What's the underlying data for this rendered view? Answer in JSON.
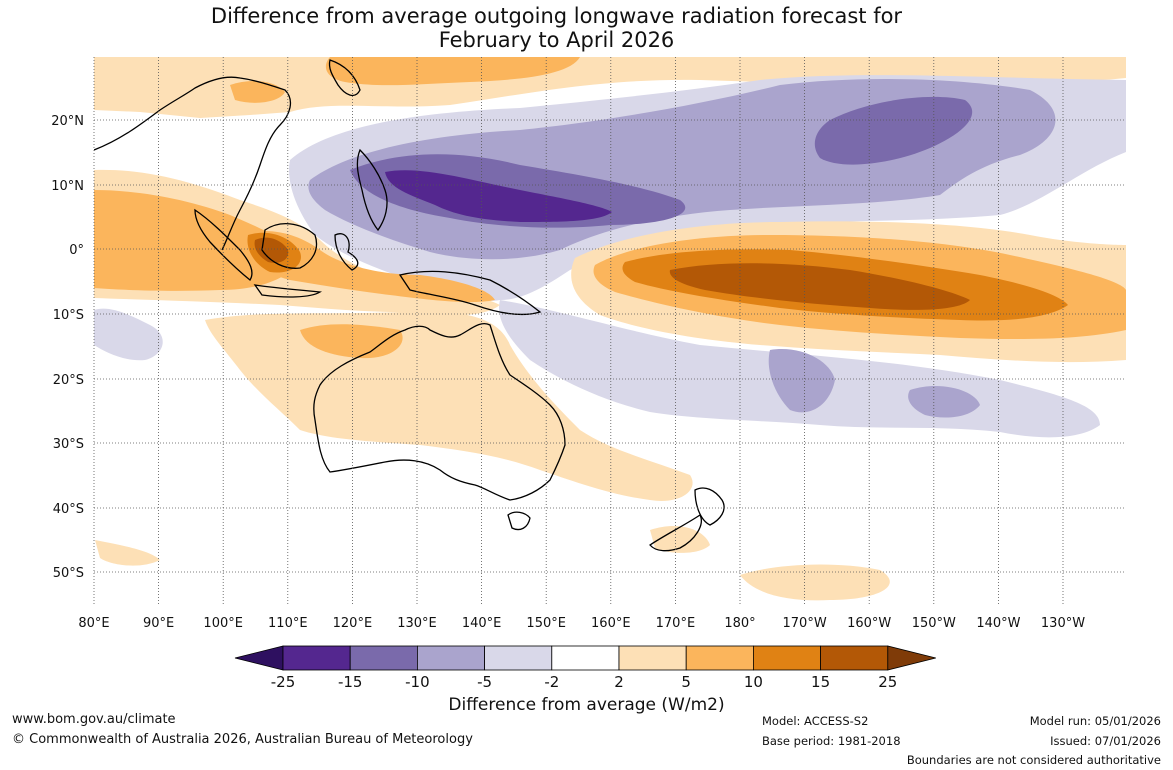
{
  "title": {
    "line1": "Difference from average outgoing longwave radiation forecast for",
    "line2": "February to April 2026"
  },
  "map": {
    "lon_labels": [
      "80°E",
      "90°E",
      "100°E",
      "110°E",
      "120°E",
      "130°E",
      "140°E",
      "150°E",
      "160°E",
      "170°E",
      "180°",
      "170°W",
      "160°W",
      "150°W",
      "140°W",
      "130°W"
    ],
    "lat_labels": [
      "20°N",
      "10°N",
      "0°",
      "10°S",
      "20°S",
      "30°S",
      "40°S",
      "50°S"
    ]
  },
  "colorbar": {
    "ticks": [
      "-25",
      "-15",
      "-10",
      "-5",
      "-2",
      "2",
      "5",
      "10",
      "15",
      "25"
    ],
    "colors": [
      "#2e1060",
      "#54278f",
      "#7a6aab",
      "#aaa4cd",
      "#d9d8e9",
      "#ffffff",
      "#fde0b6",
      "#fbb55c",
      "#e08214",
      "#b35806",
      "#7f3b08"
    ],
    "label": "Difference from average (W/m2)"
  },
  "footer": {
    "url": "www.bom.gov.au/climate",
    "copyright": "© Commonwealth of Australia 2026, Australian Bureau of Meteorology",
    "model": "Model: ACCESS-S2",
    "base_period": "Base period: 1981-2018",
    "model_run": "Model run: 05/01/2026",
    "issued": "Issued: 07/01/2026",
    "disclaimer": "Boundaries are not considered authoritative"
  }
}
